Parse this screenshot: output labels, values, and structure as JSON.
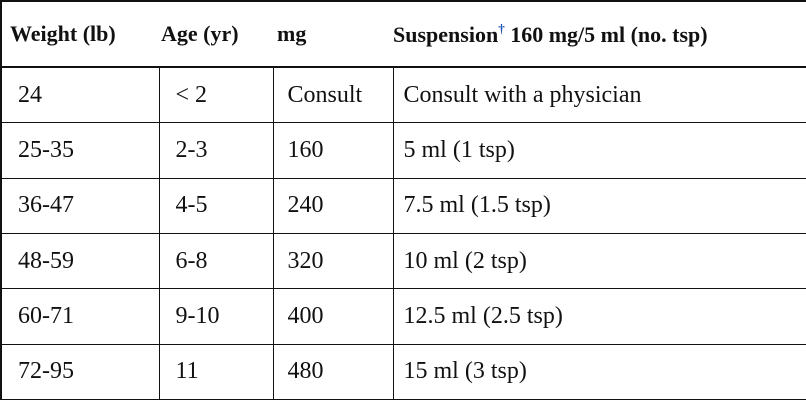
{
  "table": {
    "header": [
      "Weight (lb)",
      "Age (yr)",
      "mg",
      {
        "text": "Suspension",
        "footnote_mark": "†",
        "suffix": "160 mg/5 ml (no. tsp)"
      }
    ],
    "rows": [
      [
        "24",
        "< 2",
        "Consult",
        "Consult with a physician"
      ],
      [
        "25-35",
        "2-3",
        "160",
        "5 ml (1 tsp)"
      ],
      [
        "36-47",
        "4-5",
        "240",
        "7.5 ml (1.5 tsp)"
      ],
      [
        "48-59",
        "6-8",
        "320",
        "10 ml (2 tsp)"
      ],
      [
        "60-71",
        "9-10",
        "400",
        "12.5 ml (2.5 tsp)"
      ],
      [
        "72-95",
        "11",
        "480",
        "15 ml (3 tsp)"
      ]
    ]
  }
}
